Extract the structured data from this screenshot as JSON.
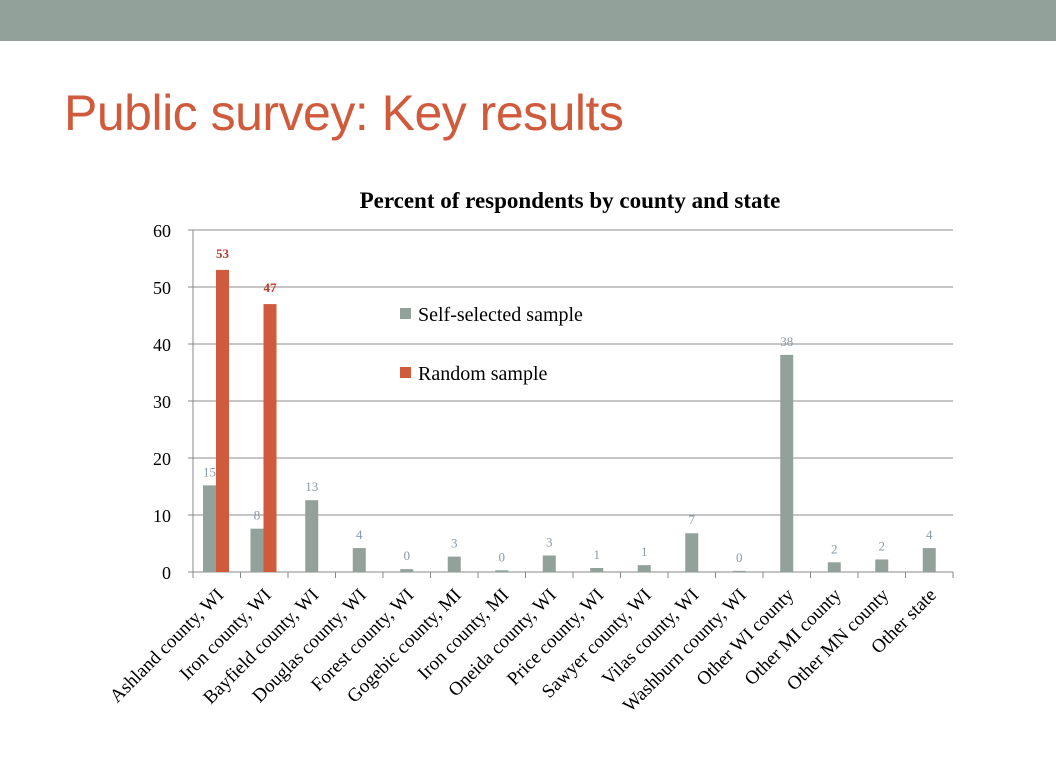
{
  "slide": {
    "title": "Public survey: Key results",
    "accent_color": "#d05a3c",
    "bar_color": "#92a199"
  },
  "chart_data": {
    "type": "bar",
    "title": "Percent of respondents by county and state",
    "xlabel": "",
    "ylabel": "",
    "ylim": [
      0,
      60
    ],
    "yticks": [
      0,
      10,
      20,
      30,
      40,
      50,
      60
    ],
    "grid": true,
    "legend_position": "upper-middle",
    "categories": [
      "Ashland county, WI",
      "Iron county, WI",
      "Bayfield county, WI",
      "Douglas county, WI",
      "Forest county, WI",
      "Gogebic county, MI",
      "Iron county, MI",
      "Oneida county, WI",
      "Price county, WI",
      "Sawyer county, WI",
      "Vilas county, WI",
      "Washburn county, WI",
      "Other WI county",
      "Other MI county",
      "Other MN county",
      "Other state"
    ],
    "series": [
      {
        "name": "Self-selected sample",
        "color": "#92a199",
        "values": [
          15.2,
          7.6,
          12.6,
          4.2,
          0.5,
          2.7,
          0.3,
          2.9,
          0.7,
          1.2,
          6.8,
          0.2,
          38.1,
          1.7,
          2.2,
          4.2
        ],
        "labels": [
          "15",
          "8",
          "13",
          "4",
          "0",
          "3",
          "0",
          "3",
          "1",
          "1",
          "7",
          "0",
          "38",
          "2",
          "2",
          "4"
        ]
      },
      {
        "name": "Random sample",
        "color": "#d05a3c",
        "values": [
          53,
          47,
          null,
          null,
          null,
          null,
          null,
          null,
          null,
          null,
          null,
          null,
          null,
          null,
          null,
          null
        ],
        "labels": [
          "53",
          "47",
          "",
          "",
          "",
          "",
          "",
          "",
          "",
          "",
          "",
          "",
          "",
          "",
          "",
          ""
        ]
      }
    ]
  }
}
